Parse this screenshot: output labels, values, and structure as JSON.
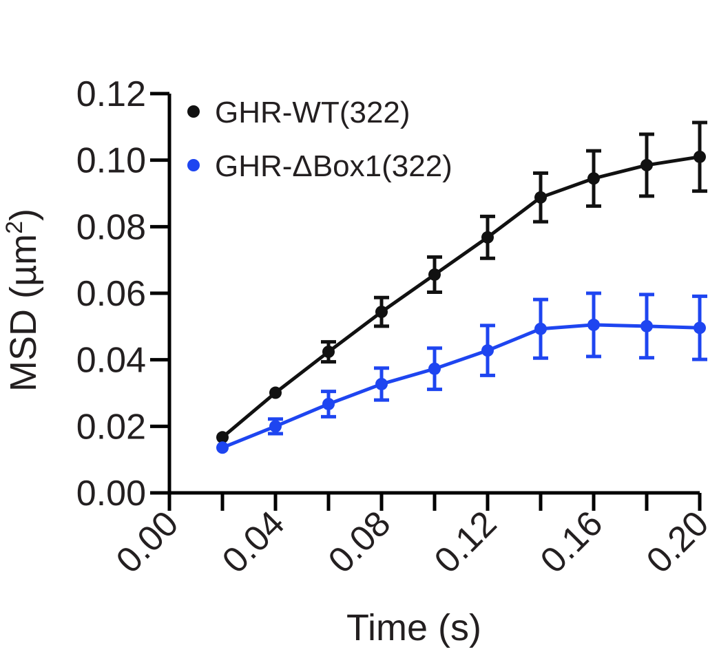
{
  "chart_data": {
    "type": "line",
    "title": "",
    "xlabel": "Time (s)",
    "ylabel": "MSD (µm²)",
    "ylabel_parts": {
      "main": "MSD (µm",
      "sup": "2",
      "close": ")"
    },
    "xlim": [
      0.0,
      0.2
    ],
    "ylim": [
      0.0,
      0.12
    ],
    "x_ticks": [
      "0.00",
      "0.04",
      "0.08",
      "0.12",
      "0.16",
      "0.20"
    ],
    "y_ticks": [
      "0.00",
      "0.02",
      "0.04",
      "0.06",
      "0.08",
      "0.10",
      "0.12"
    ],
    "x": [
      0.02,
      0.04,
      0.06,
      0.08,
      0.1,
      0.12,
      0.14,
      0.16,
      0.18,
      0.2
    ],
    "legend_position": "top-left",
    "grid": false,
    "series": [
      {
        "name": "GHR-WT(322)",
        "color": "#111111",
        "values": [
          0.0167,
          0.0301,
          0.0424,
          0.0544,
          0.0656,
          0.0768,
          0.0888,
          0.0945,
          0.0985,
          0.101
        ],
        "errors": [
          0.0,
          0.0,
          0.003,
          0.0043,
          0.0053,
          0.0063,
          0.0073,
          0.0083,
          0.0093,
          0.0103
        ]
      },
      {
        "name": "GHR-ΔBox1(322)",
        "color": "#1e45f0",
        "values": [
          0.0136,
          0.02,
          0.0267,
          0.0327,
          0.0373,
          0.0428,
          0.0493,
          0.0505,
          0.0501,
          0.0496
        ],
        "errors": [
          0.0,
          0.0022,
          0.0038,
          0.0048,
          0.0062,
          0.0075,
          0.0088,
          0.0095,
          0.0095,
          0.0095
        ]
      }
    ]
  }
}
